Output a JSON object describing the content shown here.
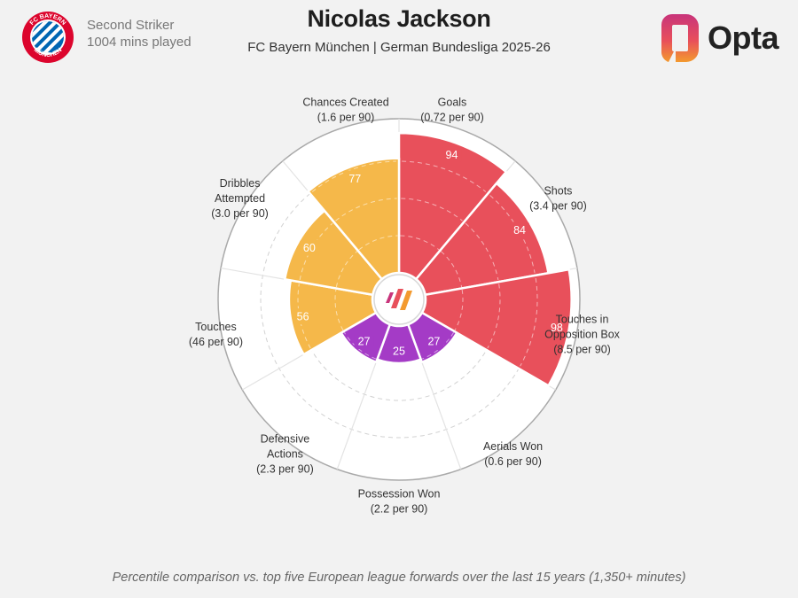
{
  "header": {
    "position": "Second Striker",
    "minutes": "1004 mins played",
    "title": "Nicolas Jackson",
    "subtitle": "FC Bayern München | German Bundesliga 2025-26",
    "brand": "Opta",
    "club_badge_icon": "fc-bayern-badge",
    "club_badge_text": "FC BAYERN MÜNCHEN"
  },
  "footnote": "Percentile comparison vs. top five European league forwards over the last 15 years (1,350+ minutes)",
  "colors": {
    "attacking": "#e8505b",
    "possession": "#f5b84a",
    "defending": "#a43bc6",
    "background": "#f2f2f2"
  },
  "chart_data": {
    "type": "radar-percentile",
    "title": "Nicolas Jackson",
    "rlim": [
      0,
      100
    ],
    "metrics": [
      {
        "name": "Goals",
        "detail": "(0.72 per 90)",
        "percentile": 94,
        "group": "attacking"
      },
      {
        "name": "Shots",
        "detail": "(3.4 per 90)",
        "percentile": 84,
        "group": "attacking"
      },
      {
        "name": "Touches in Opposition Box",
        "detail": "(8.5 per 90)",
        "percentile": 98,
        "group": "attacking"
      },
      {
        "name": "Aerials Won",
        "detail": "(0.6 per 90)",
        "percentile": 27,
        "group": "defending"
      },
      {
        "name": "Possession Won",
        "detail": "(2.2 per 90)",
        "percentile": 25,
        "group": "defending"
      },
      {
        "name": "Defensive Actions",
        "detail": "(2.3 per 90)",
        "percentile": 27,
        "group": "defending"
      },
      {
        "name": "Touches",
        "detail": "(46 per 90)",
        "percentile": 56,
        "group": "possession"
      },
      {
        "name": "Dribbles Attempted",
        "detail": "(3.0 per 90)",
        "percentile": 60,
        "group": "possession"
      },
      {
        "name": "Chances Created",
        "detail": "(1.6 per 90)",
        "percentile": 77,
        "group": "possession"
      }
    ]
  }
}
